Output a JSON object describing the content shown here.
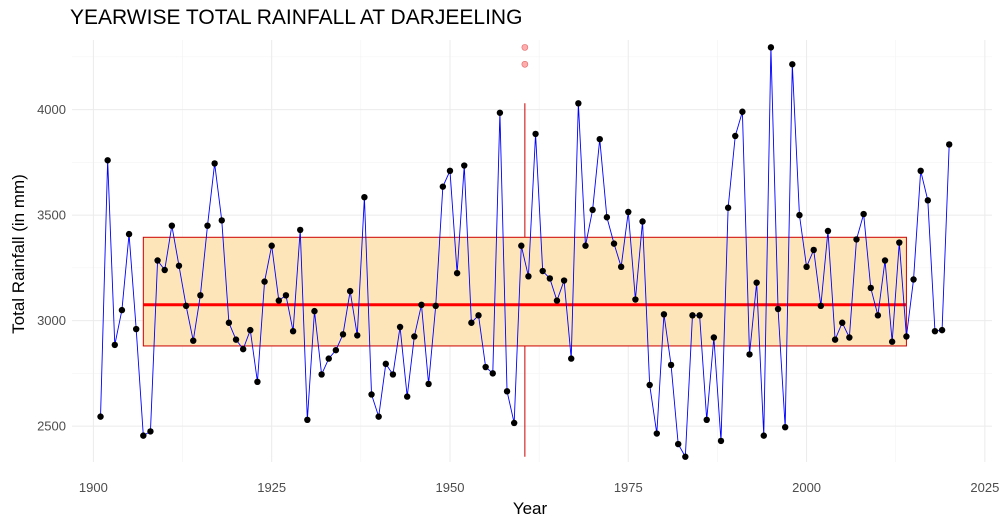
{
  "chart_data": {
    "type": "line",
    "title": "YEARWISE TOTAL RAINFALL AT DARJEELING",
    "xlabel": "Year",
    "ylabel": "Total Rainfall (in mm)",
    "xlim": [
      1897,
      2026
    ],
    "ylim": [
      2330,
      4330
    ],
    "x_ticks": [
      1900,
      1925,
      1950,
      1975,
      2000,
      2025
    ],
    "y_ticks": [
      2500,
      3000,
      3500,
      4000
    ],
    "grid": true,
    "colors": {
      "line": "#0000ff",
      "points": "#000000",
      "box_fill": "#fde5b9",
      "box_border": "#cc0000",
      "median_line": "#ff0000",
      "whisker": "#cc0000",
      "outliers": "#ff9999"
    },
    "series": [
      {
        "x": [
          1901,
          1902,
          1903,
          1904,
          1905,
          1906,
          1907,
          1908,
          1909,
          1910,
          1911,
          1912,
          1913,
          1914,
          1915,
          1916,
          1917,
          1918,
          1919,
          1920,
          1921,
          1922,
          1923,
          1924,
          1925,
          1926,
          1927,
          1928,
          1929,
          1930,
          1931,
          1932,
          1933,
          1934,
          1935,
          1936,
          1937,
          1938,
          1939,
          1940,
          1941,
          1942,
          1943,
          1944,
          1945,
          1946,
          1947,
          1948,
          1949,
          1950,
          1951,
          1952,
          1953,
          1954,
          1955,
          1956,
          1957,
          1958,
          1959,
          1960,
          1961,
          1962,
          1963,
          1964,
          1965,
          1966,
          1967,
          1968,
          1969,
          1970,
          1971,
          1972,
          1973,
          1974,
          1975,
          1976,
          1977,
          1978,
          1979,
          1980,
          1981,
          1982,
          1983,
          1984,
          1985,
          1986,
          1987,
          1988,
          1989,
          1990,
          1991,
          1992,
          1993,
          1994,
          1995,
          1996,
          1997,
          1998,
          1999,
          2000,
          2001,
          2002,
          2003,
          2004,
          2005,
          2006,
          2007,
          2008,
          2009,
          2010,
          2011,
          2012,
          2013,
          2014,
          2015,
          2016,
          2017,
          2018,
          2019,
          2020
        ],
        "values": [
          2545,
          3760,
          2885,
          3050,
          3410,
          2960,
          2455,
          2475,
          3285,
          3240,
          3450,
          3260,
          3070,
          2905,
          3120,
          3450,
          3745,
          3475,
          2990,
          2910,
          2865,
          2955,
          2710,
          3185,
          3355,
          3095,
          3120,
          2950,
          3430,
          2530,
          3045,
          2745,
          2820,
          2860,
          2935,
          3140,
          2930,
          3585,
          2650,
          2545,
          2795,
          2745,
          2970,
          2640,
          2925,
          3075,
          2700,
          3070,
          3635,
          3710,
          3225,
          3735,
          2990,
          3025,
          2780,
          2750,
          3985,
          2665,
          2515,
          3355,
          3210,
          3885,
          3235,
          3200,
          3095,
          3190,
          2820,
          4030,
          3355,
          3525,
          3860,
          3490,
          3365,
          3255,
          3515,
          3100,
          3470,
          2695,
          2465,
          3030,
          2790,
          2415,
          2355,
          3025,
          3025,
          2530,
          2920,
          2430,
          3535,
          3875,
          3990,
          2840,
          3180,
          2455,
          4295,
          3055,
          2495,
          4215,
          3500,
          3255,
          3335,
          3070,
          3425,
          2910,
          2990,
          2920,
          3385,
          3505,
          3155,
          3025,
          3285,
          2900,
          3370,
          2925,
          3195,
          3710,
          3570,
          2950,
          2955,
          3835
        ]
      }
    ],
    "boxplot": {
      "x_position": 1960.5,
      "x_span": [
        1907,
        2014
      ],
      "lower_quartile": 2880,
      "median": 3075,
      "upper_quartile": 3395,
      "whisker_low": 2355,
      "whisker_high": 4030,
      "outliers": [
        4215,
        4295
      ]
    }
  }
}
